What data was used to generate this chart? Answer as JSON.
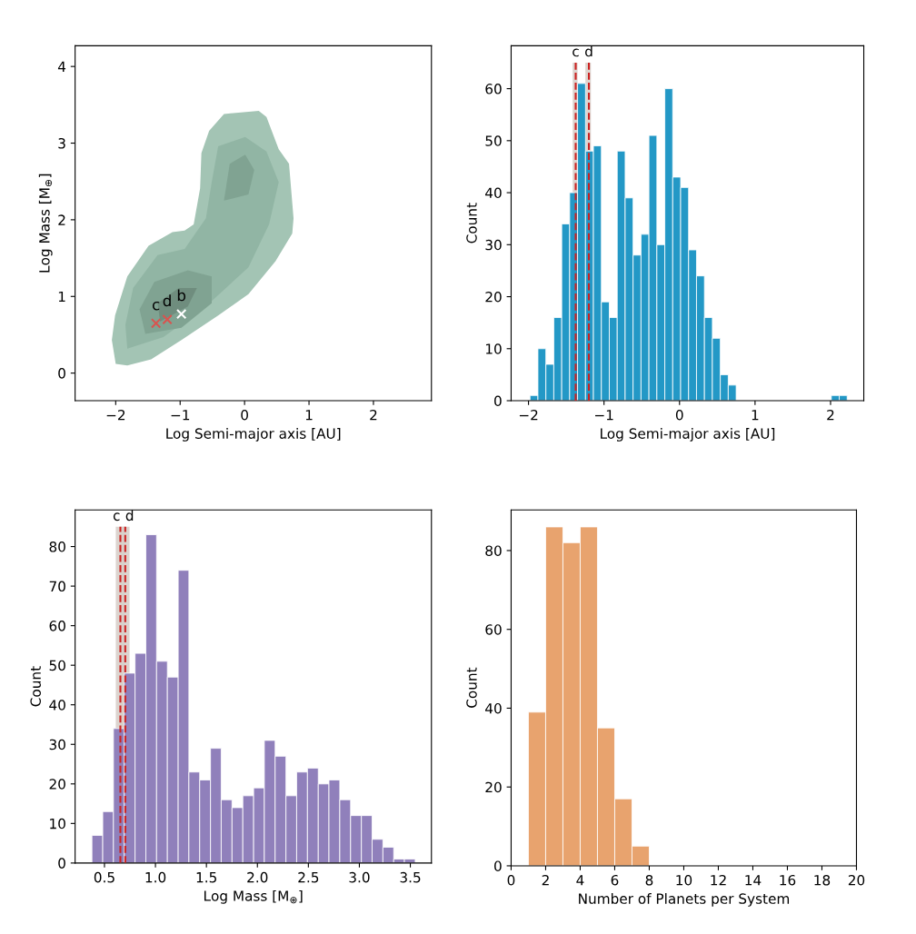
{
  "chart_data": [
    {
      "type": "scatter",
      "xlabel": "Log Semi-major axis [AU]",
      "ylabel": "Log Mass [M$_{⊕}$]",
      "xlim": [
        -2.63,
        2.9
      ],
      "ylim": [
        -0.36,
        4.27
      ],
      "xticks": [
        -2,
        -1,
        0,
        1,
        2
      ],
      "yticks": [
        0,
        1,
        2,
        3,
        4
      ],
      "grid": false,
      "series": [
        {
          "type": "area",
          "color": "#a3c4b4",
          "x": [
            -2.0,
            -1.82,
            -1.45,
            -0.98,
            -0.41,
            0.06,
            0.48,
            0.74,
            0.76,
            0.69,
            0.53,
            0.34,
            0.22,
            -0.32,
            -0.55,
            -0.67,
            -0.69,
            -0.79,
            -0.93,
            -1.12,
            -1.49,
            -1.82,
            -2.01,
            -2.06
          ],
          "values": [
            0.12,
            0.1,
            0.18,
            0.43,
            0.75,
            1.03,
            1.46,
            1.82,
            2.02,
            2.73,
            2.92,
            3.34,
            3.42,
            3.38,
            3.16,
            2.87,
            2.41,
            1.94,
            1.86,
            1.84,
            1.66,
            1.26,
            0.75,
            0.43
          ]
        },
        {
          "type": "area",
          "color": "#91b5a4",
          "x": [
            -1.82,
            -1.26,
            -0.6,
            0.06,
            0.38,
            0.53,
            0.34,
            0.01,
            -0.41,
            -0.51,
            -0.6,
            -0.93,
            -1.35,
            -1.73,
            -1.85
          ],
          "values": [
            0.32,
            0.47,
            0.87,
            1.38,
            1.94,
            2.49,
            2.89,
            3.08,
            2.96,
            2.49,
            2.02,
            1.62,
            1.54,
            1.11,
            0.63
          ]
        },
        {
          "type": "area",
          "color": "#80a392",
          "x": [
            -1.54,
            -0.98,
            -0.51,
            -0.51,
            -0.88,
            -1.4,
            -1.63
          ],
          "values": [
            0.51,
            0.59,
            0.91,
            1.26,
            1.34,
            1.19,
            0.83
          ]
        },
        {
          "type": "area",
          "color": "#80a392",
          "x": [
            -0.32,
            0.06,
            0.15,
            0.01,
            -0.23
          ],
          "values": [
            2.25,
            2.33,
            2.65,
            2.85,
            2.73
          ]
        },
        {
          "type": "area",
          "color": "#6f8d7e",
          "x": [
            -1.31,
            -0.88,
            -0.74,
            -1.02,
            -1.35
          ],
          "values": [
            0.67,
            0.87,
            1.11,
            1.11,
            0.91
          ]
        },
        {
          "type": "scatter",
          "marker": "cross",
          "x": [
            -1.375,
            -1.2,
            -0.98
          ],
          "values": [
            0.65,
            0.7,
            0.77
          ],
          "colors": [
            "#d9534f",
            "#d9534f",
            "#ffffff"
          ]
        }
      ],
      "annotations": [
        {
          "text": "c",
          "x": -1.375,
          "y": 0.65
        },
        {
          "text": "d",
          "x": -1.2,
          "y": 0.7
        },
        {
          "text": "b",
          "x": -0.98,
          "y": 0.77
        }
      ]
    },
    {
      "type": "histogram",
      "xlabel": "Log Semi-major axis [AU]",
      "ylabel": "Count",
      "color": "#2398c6",
      "xlim": [
        -2.23,
        2.44
      ],
      "ylim": [
        0,
        68.25
      ],
      "xticks": [
        -2,
        -1,
        0,
        1,
        2
      ],
      "yticks": [
        0,
        10,
        20,
        30,
        40,
        50,
        60
      ],
      "grid": false,
      "bins": [
        -1.98,
        -1.875,
        -1.77,
        -1.665,
        -1.56,
        -1.455,
        -1.35,
        -1.245,
        -1.14,
        -1.035,
        -0.93,
        -0.825,
        -0.72,
        -0.615,
        -0.51,
        -0.405,
        -0.3,
        -0.195,
        -0.09,
        0.015,
        0.12,
        0.225,
        0.33,
        0.435,
        0.54,
        0.645,
        0.75,
        0.855,
        0.96,
        1.065,
        1.17,
        1.275,
        1.38,
        1.485,
        1.59,
        1.695,
        1.8,
        1.905,
        2.01,
        2.115,
        2.22
      ],
      "values": [
        1,
        10,
        7,
        16,
        34,
        40,
        61,
        48,
        49,
        19,
        16,
        48,
        39,
        28,
        32,
        51,
        30,
        60,
        43,
        41,
        29,
        24,
        16,
        12,
        5,
        3,
        0,
        0,
        0,
        0,
        0,
        0,
        0,
        0,
        0,
        0,
        0,
        0,
        1,
        1
      ],
      "bands": [
        {
          "axis": "x",
          "from": -1.415,
          "to": -1.35,
          "color": "#d8cfca"
        },
        {
          "axis": "x",
          "from": -1.247,
          "to": -1.174,
          "color": "#d8cfca"
        }
      ],
      "ref_lines": [
        {
          "axis": "x",
          "value": -1.375,
          "label": "c",
          "color": "#cc2222",
          "line_style": "dashed"
        },
        {
          "axis": "x",
          "value": -1.2,
          "label": "d",
          "color": "#cc2222",
          "line_style": "dashed"
        }
      ]
    },
    {
      "type": "histogram",
      "xlabel": "Log Mass [M$_{⊕}$]",
      "ylabel": "Count",
      "color": "#9080bb",
      "xlim": [
        0.212,
        3.707
      ],
      "ylim": [
        0,
        89.25
      ],
      "xticks": [
        {
          "value": 0.5,
          "label": "0.5"
        },
        {
          "value": 1.0,
          "label": "1.0"
        },
        {
          "value": 1.5,
          "label": "1.5"
        },
        {
          "value": 2.0,
          "label": "2.0"
        },
        {
          "value": 2.5,
          "label": "2.5"
        },
        {
          "value": 3.0,
          "label": "3.0"
        },
        {
          "value": 3.5,
          "label": "3.5"
        }
      ],
      "yticks": [
        0,
        10,
        20,
        30,
        40,
        50,
        60,
        70,
        80
      ],
      "grid": false,
      "bins": [
        0.377,
        0.483,
        0.588,
        0.694,
        0.8,
        0.906,
        1.011,
        1.117,
        1.223,
        1.328,
        1.434,
        1.54,
        1.645,
        1.751,
        1.857,
        1.963,
        2.068,
        2.174,
        2.28,
        2.385,
        2.491,
        2.597,
        2.702,
        2.808,
        2.914,
        3.02,
        3.125,
        3.231,
        3.337,
        3.442,
        3.548
      ],
      "values": [
        7,
        13,
        34,
        48,
        53,
        83,
        51,
        47,
        74,
        23,
        21,
        29,
        16,
        14,
        17,
        19,
        31,
        27,
        17,
        23,
        24,
        20,
        21,
        16,
        12,
        12,
        6,
        4,
        1,
        1
      ],
      "bands": [
        {
          "axis": "x",
          "from": 0.611,
          "to": 0.701,
          "color": "#d8cfca"
        },
        {
          "axis": "x",
          "from": 0.659,
          "to": 0.746,
          "color": "#d8cfca"
        }
      ],
      "ref_lines": [
        {
          "axis": "x",
          "value": 0.656,
          "label": "c",
          "color": "#cc2222",
          "line_style": "dashed"
        },
        {
          "axis": "x",
          "value": 0.704,
          "label": "d",
          "color": "#cc2222",
          "line_style": "dashed"
        }
      ]
    },
    {
      "type": "histogram",
      "xlabel": "Number of Planets per System",
      "ylabel": "Count",
      "color": "#e8a36e",
      "xlim": [
        0,
        20
      ],
      "ylim": [
        0,
        90.3
      ],
      "xticks": [
        0,
        2,
        4,
        6,
        8,
        10,
        12,
        14,
        16,
        18,
        20
      ],
      "yticks": [
        0,
        20,
        40,
        60,
        80
      ],
      "grid": false,
      "bins": [
        1,
        2,
        3,
        4,
        5,
        6,
        7,
        8
      ],
      "values": [
        39,
        86,
        82,
        86,
        35,
        17,
        5
      ]
    }
  ]
}
